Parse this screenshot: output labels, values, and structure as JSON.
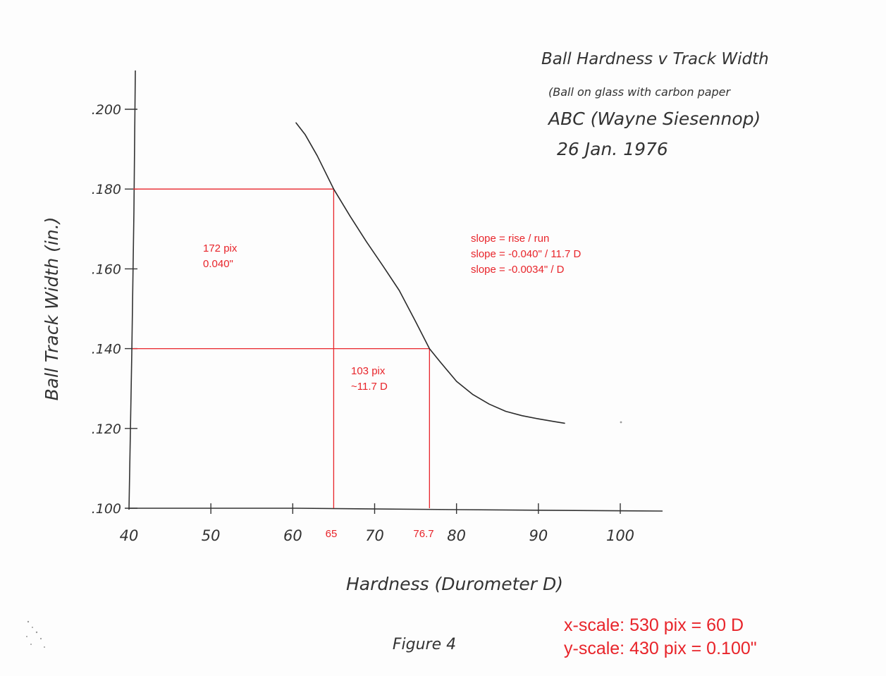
{
  "chart_data": {
    "type": "line",
    "title": "Ball Hardness v Track Width",
    "subtitle_lines": [
      "(Ball on glass with carbon paper",
      "ABC (Wayne Siesennop)",
      "26 Jan. 1976"
    ],
    "xlabel": "Hardness (Durometer D)",
    "ylabel": "Ball Track Width (in.)",
    "caption": "Figure 4",
    "xlim": [
      40,
      102
    ],
    "ylim": [
      0.1,
      0.21
    ],
    "x_ticks": [
      40,
      50,
      60,
      70,
      80,
      90,
      100
    ],
    "x_tick_labels": [
      "40",
      "50",
      "60",
      "70",
      "80",
      "90",
      "100"
    ],
    "y_ticks": [
      0.1,
      0.12,
      0.14,
      0.16,
      0.18,
      0.2
    ],
    "y_tick_labels": [
      ".100",
      ".120",
      ".140",
      ".160",
      ".180",
      ".200"
    ],
    "grid": false,
    "series": [
      {
        "x": [
          60.4,
          61.5,
          63.0,
          65.0,
          67.0,
          69.0,
          71.0,
          73.0,
          75.0,
          76.7,
          78.0,
          80.0,
          82.0,
          84.0,
          86.0,
          88.0,
          90.0,
          92.0,
          93.2
        ],
        "y": [
          0.1966,
          0.1937,
          0.1883,
          0.18,
          0.1732,
          0.1668,
          0.1608,
          0.1546,
          0.1468,
          0.14,
          0.1367,
          0.1318,
          0.1285,
          0.1261,
          0.1243,
          0.1232,
          0.1224,
          0.1217,
          0.1213
        ]
      }
    ],
    "guide_lines": {
      "x_values": [
        65,
        76.7
      ],
      "y_values": [
        0.18,
        0.14
      ],
      "color": "#e8242a"
    },
    "annotations": {
      "x_marks": [
        "65",
        "76.7"
      ],
      "rise_box": [
        "172 pix",
        "0.040\""
      ],
      "run_box": [
        "103 pix",
        "~11.7 D"
      ],
      "slope_lines": [
        "slope = rise / run",
        "slope = -0.040\" / 11.7 D",
        "slope = -0.0034\" / D"
      ],
      "scale_lines": [
        "x-scale: 530 pix = 60 D",
        "y-scale: 430 pix = 0.100\""
      ]
    }
  }
}
